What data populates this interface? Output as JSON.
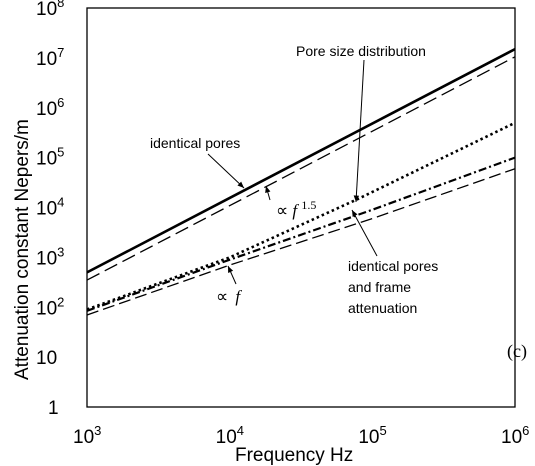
{
  "chart_data": {
    "type": "line",
    "xlabel": "Frequency Hz",
    "ylabel": "Attenuation constant Nepers/m",
    "panel_label": "(c)",
    "x_scale": "log",
    "y_scale": "log",
    "xlim": [
      1000,
      1000000
    ],
    "ylim": [
      1,
      100000000
    ],
    "x_ticks": [
      {
        "base": "10",
        "exp": "3"
      },
      {
        "base": "10",
        "exp": "4"
      },
      {
        "base": "10",
        "exp": "5"
      },
      {
        "base": "10",
        "exp": "6"
      }
    ],
    "y_ticks": [
      {
        "base": "1",
        "exp": ""
      },
      {
        "base": "10",
        "exp": ""
      },
      {
        "base": "10",
        "exp": "2"
      },
      {
        "base": "10",
        "exp": "3"
      },
      {
        "base": "10",
        "exp": "4"
      },
      {
        "base": "10",
        "exp": "5"
      },
      {
        "base": "10",
        "exp": "6"
      },
      {
        "base": "10",
        "exp": "7"
      },
      {
        "base": "10",
        "exp": "8"
      }
    ],
    "grid": false,
    "series": [
      {
        "style": "solid",
        "x": [
          1000,
          1000000
        ],
        "y": [
          500,
          15000000
        ]
      },
      {
        "style": "long-dash",
        "x": [
          1000,
          1000000
        ],
        "y": [
          350,
          10500000
        ]
      },
      {
        "style": "dotted",
        "x": [
          1000,
          10000,
          80000,
          1000000
        ],
        "y": [
          90,
          1000,
          15000,
          500000
        ]
      },
      {
        "style": "dash-dot",
        "x": [
          1000,
          10000,
          100000,
          1000000
        ],
        "y": [
          85,
          900,
          9000,
          100000
        ]
      },
      {
        "style": "dashed",
        "x": [
          1000,
          10000,
          100000,
          1000000
        ],
        "y": [
          70,
          700,
          6000,
          60000
        ]
      }
    ],
    "annotations": {
      "identical_pores": "identical pores",
      "pore_size": "Pore size distribution",
      "frame_line1": "identical pores",
      "frame_line2": "and frame",
      "frame_line3": "attenuation",
      "prop_symbol": "∝",
      "f_symbol": "f",
      "exponent_15": "1.5"
    },
    "colors": {
      "line": "#000000",
      "axis": "#000000"
    }
  }
}
